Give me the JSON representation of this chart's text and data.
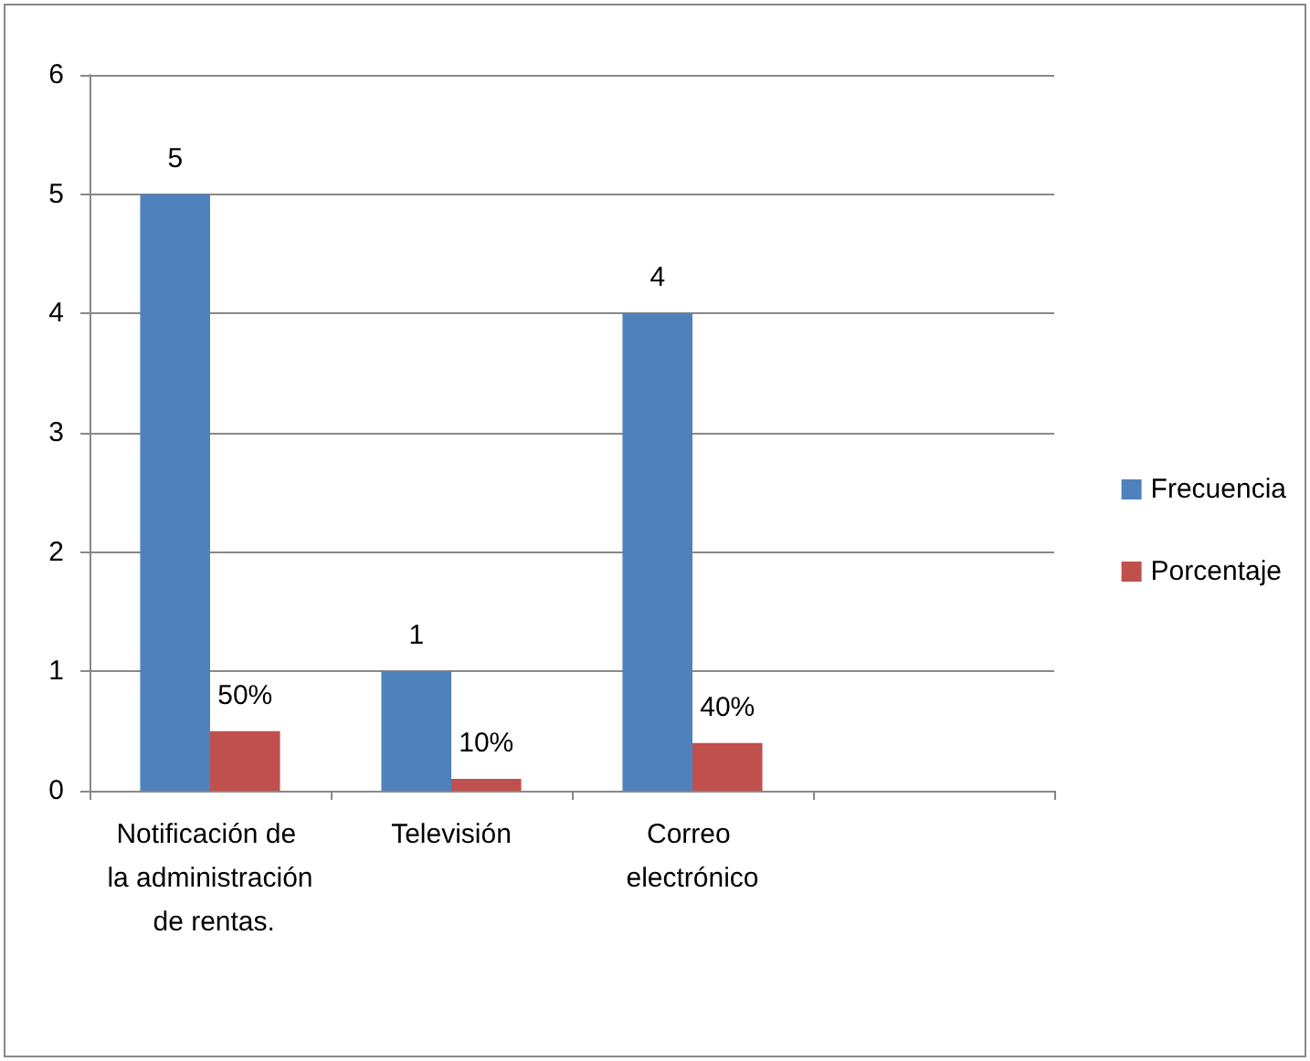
{
  "chart_data": {
    "type": "bar",
    "categories": [
      "Notificación de la administración de rentas.",
      "Televisión",
      "Correo electrónico",
      null
    ],
    "series": [
      {
        "name": "Frecuencia",
        "color": "#4f81bd",
        "values": [
          5,
          1,
          4,
          null
        ],
        "value_labels": [
          "5",
          "1",
          "4",
          null
        ]
      },
      {
        "name": "Porcentaje",
        "color": "#c0504d",
        "values": [
          0.5,
          0.1,
          0.4,
          null
        ],
        "value_labels": [
          "50%",
          "10%",
          "40%",
          null
        ]
      }
    ],
    "ylim": [
      0,
      6
    ],
    "yticks": [
      0,
      1,
      2,
      3,
      4,
      5,
      6
    ],
    "grid": "y",
    "legend": "right"
  }
}
